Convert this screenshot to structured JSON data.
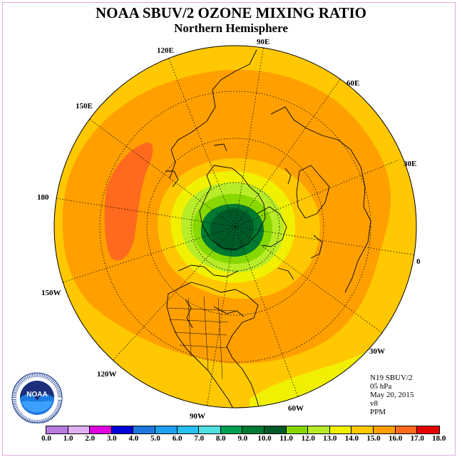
{
  "title": "NOAA SBUV/2 OZONE MIXING RATIO",
  "subtitle": "Northern Hemisphere",
  "longitude_labels": [
    "90E",
    "60E",
    "30E",
    "0",
    "30W",
    "60W",
    "90W",
    "120W",
    "150W",
    "180",
    "150E",
    "120E"
  ],
  "info": [
    "N19 SBUV/2",
    "05 hPa",
    "May 20, 2015",
    "v8",
    "PPM"
  ],
  "colorbar": {
    "ticks": [
      "0.0",
      "1.0",
      "2.0",
      "3.0",
      "4.0",
      "5.0",
      "6.0",
      "7.0",
      "8.0",
      "9.0",
      "10.0",
      "11.0",
      "12.0",
      "13.0",
      "14.0",
      "15.0",
      "16.0",
      "17.0",
      "18.0"
    ],
    "colors": [
      "#b87be0",
      "#e0b0f0",
      "#e000e0",
      "#0000d8",
      "#1e78e0",
      "#1ea0f0",
      "#28c0f0",
      "#50e0e0",
      "#00a050",
      "#007a30",
      "#005a28",
      "#88d800",
      "#b8ec28",
      "#f0f000",
      "#ffc800",
      "#ffa000",
      "#ff6a1e",
      "#e80000",
      "#8a4e28"
    ]
  },
  "logo": {
    "text": "NOAA",
    "ring_text": "NATIONAL OCEANIC AND ATMOSPHERIC ADMINISTRATION · U.S. DEPARTMENT OF COMMERCE"
  }
}
